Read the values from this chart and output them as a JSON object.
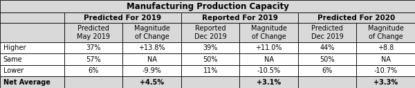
{
  "title": "Manufacturing Production Capacity",
  "col_groups": [
    {
      "label": "Predicted For 2019"
    },
    {
      "label": "Reported For 2019"
    },
    {
      "label": "Predicted For 2020"
    }
  ],
  "col_headers": [
    "Predicted\nMay 2019",
    "Magnitude\nof Change",
    "Reported\nDec 2019",
    "Magnitude\nof Change",
    "Predicted\nDec 2019",
    "Magnitude\nof Change"
  ],
  "row_labels": [
    "Higher",
    "Same",
    "Lower",
    "Net Average"
  ],
  "data": [
    [
      "37%",
      "+13.8%",
      "39%",
      "+11.0%",
      "44%",
      "+8.8"
    ],
    [
      "57%",
      "NA",
      "50%",
      "NA",
      "50%",
      "NA"
    ],
    [
      "6%",
      "-9.9%",
      "11%",
      "-10.5%",
      "6%",
      "-10.7%"
    ],
    [
      "",
      "+4.5%",
      "",
      "+3.1%",
      "",
      "+3.3%"
    ]
  ],
  "bg_header": "#d9d9d9",
  "bg_white": "#ffffff",
  "border_color": "#000000",
  "font_size": 7.0,
  "title_font_size": 8.5,
  "group_font_size": 7.5
}
